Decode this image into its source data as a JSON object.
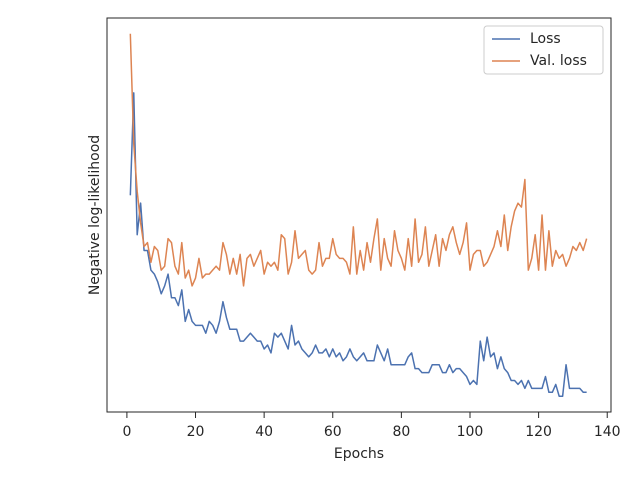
{
  "chart_data": {
    "type": "line",
    "xlabel": "Epochs",
    "ylabel": "Negative log-likelihood",
    "x": [
      1,
      2,
      3,
      4,
      5,
      6,
      7,
      8,
      9,
      10,
      11,
      12,
      13,
      14,
      15,
      16,
      17,
      18,
      19,
      20,
      21,
      22,
      23,
      24,
      25,
      26,
      27,
      28,
      29,
      30,
      31,
      32,
      33,
      34,
      35,
      36,
      37,
      38,
      39,
      40,
      41,
      42,
      43,
      44,
      45,
      46,
      47,
      48,
      49,
      50,
      51,
      52,
      53,
      54,
      55,
      56,
      57,
      58,
      59,
      60,
      61,
      62,
      63,
      64,
      65,
      66,
      67,
      68,
      69,
      70,
      71,
      72,
      73,
      74,
      75,
      76,
      77,
      78,
      79,
      80,
      81,
      82,
      83,
      84,
      85,
      86,
      87,
      88,
      89,
      90,
      91,
      92,
      93,
      94,
      95,
      96,
      97,
      98,
      99,
      100,
      101,
      102,
      103,
      104,
      105,
      106,
      107,
      108,
      109,
      110,
      111,
      112,
      113,
      114,
      115,
      116,
      117,
      118,
      119,
      120,
      121,
      122,
      123,
      124,
      125,
      126,
      127,
      128,
      129,
      130,
      131,
      132,
      133,
      134
    ],
    "series": [
      {
        "name": "Loss",
        "color": "#4c72b0",
        "values": [
          55,
          81,
          45,
          53,
          41,
          41,
          36,
          35,
          33,
          30,
          32,
          35,
          29,
          29,
          27,
          31,
          23,
          26,
          23,
          22,
          22,
          22,
          20,
          23,
          22,
          20,
          23,
          28,
          24,
          21,
          21,
          21,
          18,
          18,
          19,
          20,
          19,
          18,
          18,
          16,
          17,
          15,
          20,
          19,
          20,
          18,
          16,
          22,
          17,
          18,
          16,
          15,
          14,
          15,
          17,
          15,
          15,
          16,
          14,
          16,
          14,
          15,
          13,
          14,
          16,
          14,
          13,
          14,
          15,
          13,
          13,
          13,
          17,
          15,
          13,
          16,
          12,
          12,
          12,
          12,
          12,
          14,
          15,
          11,
          11,
          10,
          10,
          10,
          12,
          12,
          12,
          10,
          10,
          12,
          10,
          11,
          11,
          10,
          9,
          7,
          8,
          7,
          18,
          13,
          19,
          14,
          15,
          11,
          14,
          11,
          10,
          8,
          8,
          7,
          8,
          6,
          8,
          6,
          6,
          6,
          6,
          9,
          5,
          5,
          7,
          4,
          4,
          12,
          6,
          6,
          6,
          6,
          5,
          5
        ]
      },
      {
        "name": "Val. loss",
        "color": "#dd8452",
        "values": [
          96,
          68,
          56,
          48,
          42,
          43,
          38,
          42,
          41,
          36,
          37,
          44,
          43,
          37,
          35,
          43,
          34,
          36,
          32,
          34,
          39,
          34,
          35,
          35,
          36,
          37,
          36,
          43,
          40,
          35,
          39,
          35,
          40,
          32,
          39,
          40,
          37,
          39,
          41,
          35,
          38,
          37,
          38,
          36,
          45,
          44,
          35,
          38,
          46,
          39,
          40,
          41,
          36,
          35,
          36,
          43,
          37,
          39,
          39,
          44,
          40,
          39,
          39,
          38,
          35,
          47,
          35,
          41,
          36,
          43,
          38,
          44,
          49,
          36,
          44,
          39,
          37,
          46,
          41,
          39,
          36,
          44,
          37,
          49,
          38,
          40,
          47,
          37,
          41,
          45,
          37,
          44,
          41,
          45,
          47,
          43,
          40,
          43,
          48,
          36,
          40,
          41,
          41,
          37,
          38,
          40,
          42,
          46,
          42,
          50,
          41,
          47,
          51,
          53,
          52,
          59,
          36,
          39,
          45,
          36,
          50,
          36,
          46,
          37,
          41,
          39,
          40,
          37,
          39,
          42,
          41,
          43,
          41,
          44
        ]
      }
    ],
    "xlim": [
      -5.8,
      141.1
    ],
    "xticks": [
      0,
      20,
      40,
      60,
      80,
      100,
      120,
      140
    ],
    "ylim": [
      0,
      100
    ],
    "legend": "upper right"
  }
}
